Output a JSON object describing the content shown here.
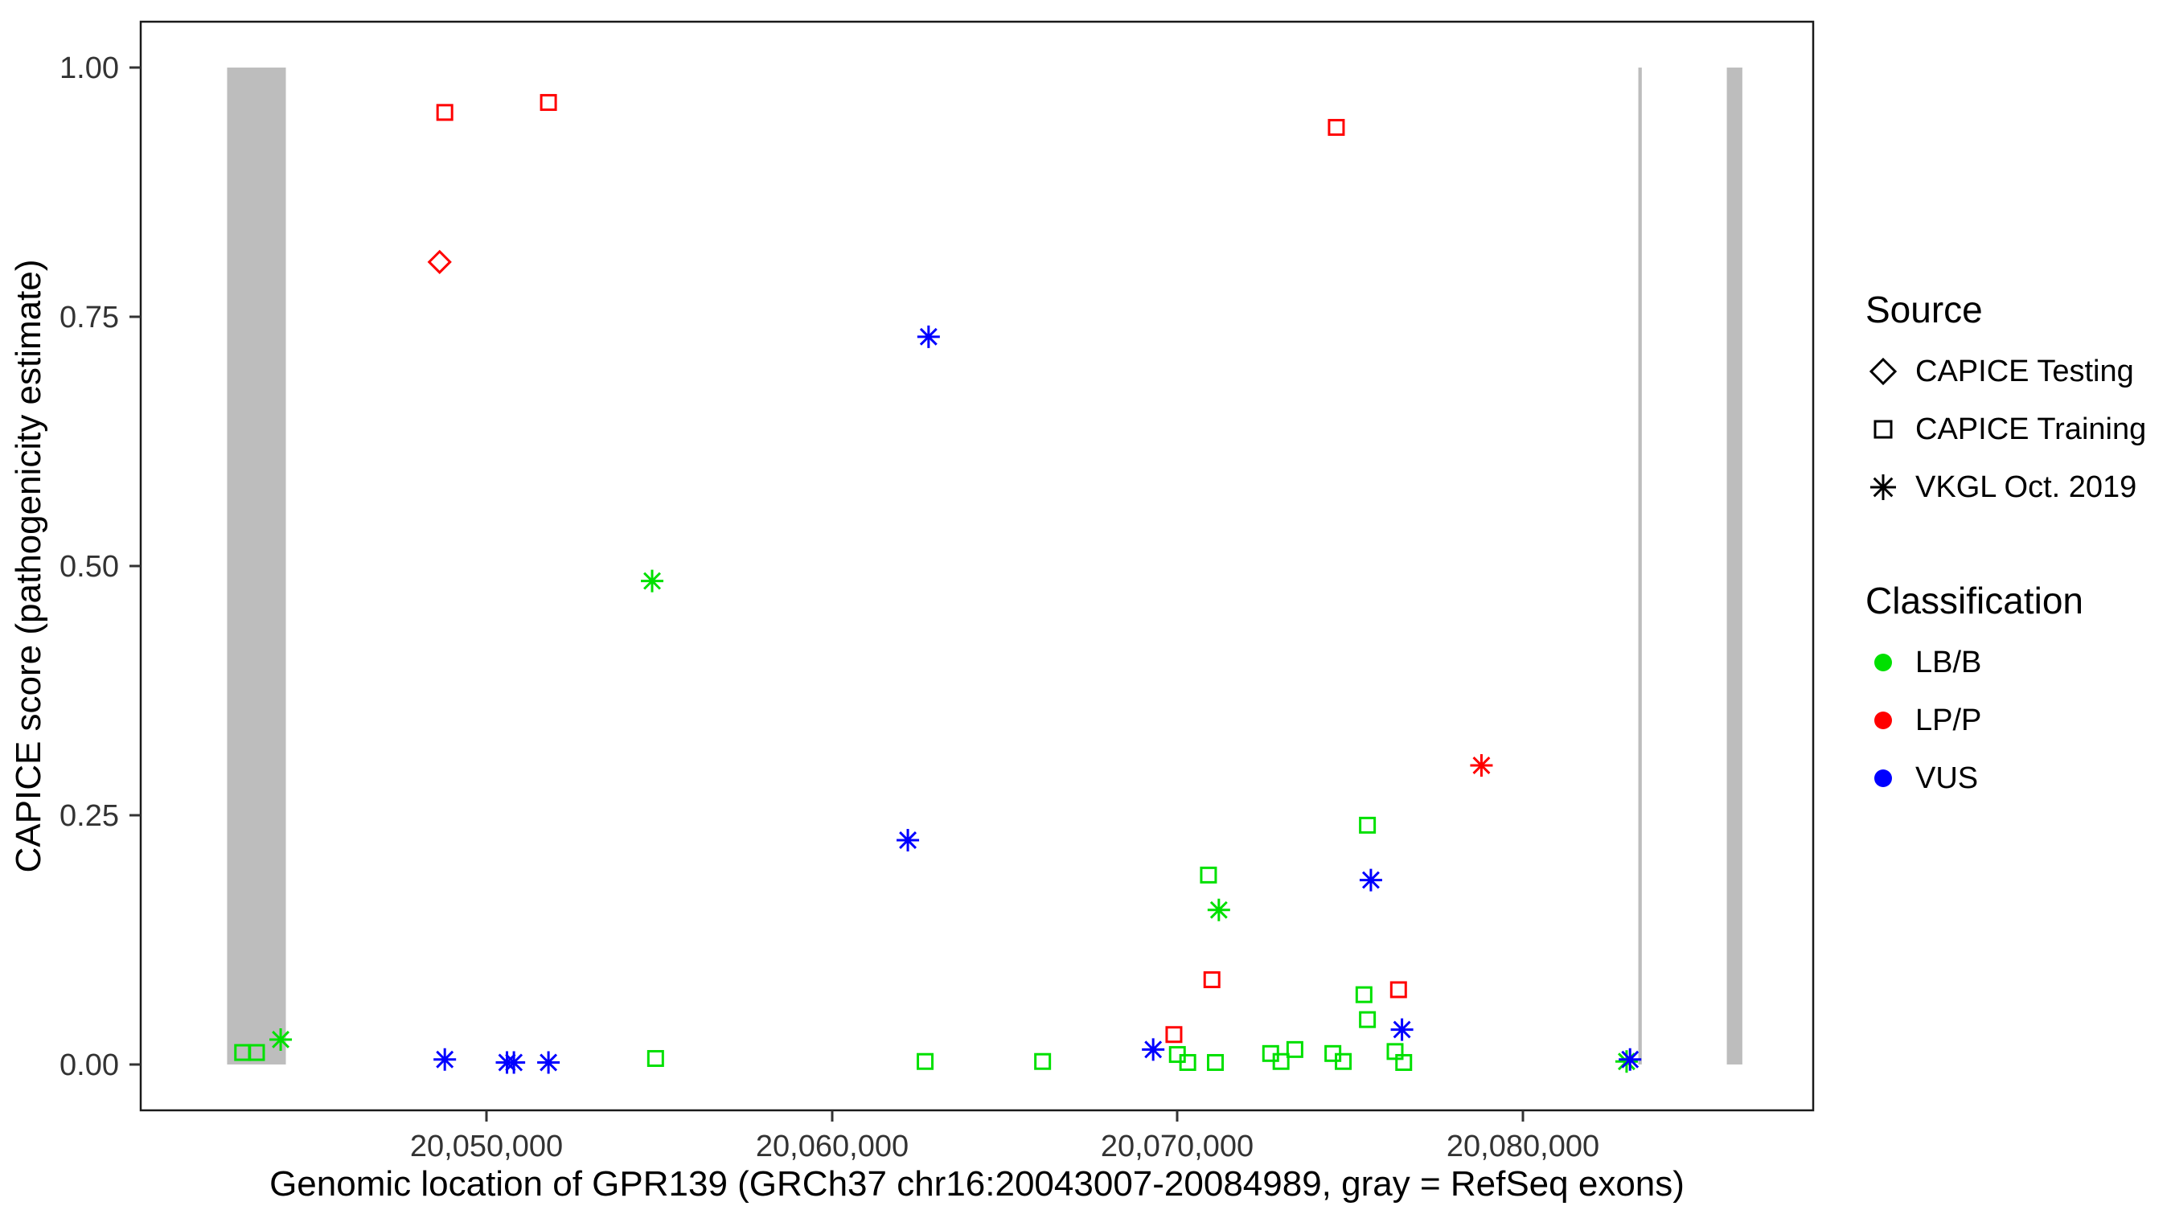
{
  "axes": {
    "x_label": "Genomic location of GPR139 (GRCh37 chr16:20043007-20084989, gray = RefSeq exons)",
    "y_label": "CAPICE score (pathogenicity estimate)",
    "x_ticks": [
      "20,050,000",
      "20,060,000",
      "20,070,000",
      "20,080,000"
    ],
    "y_ticks": [
      "0.00",
      "0.25",
      "0.50",
      "0.75",
      "1.00"
    ]
  },
  "legend": {
    "source": {
      "title": "Source",
      "items": [
        {
          "label": "CAPICE Testing",
          "shape": "diamond"
        },
        {
          "label": "CAPICE Training",
          "shape": "square"
        },
        {
          "label": "VKGL Oct. 2019",
          "shape": "asterisk"
        }
      ]
    },
    "classification": {
      "title": "Classification",
      "items": [
        {
          "label": "LB/B",
          "color_key": "LB/B"
        },
        {
          "label": "LP/P",
          "color_key": "LP/P"
        },
        {
          "label": "VUS",
          "color_key": "VUS"
        }
      ]
    }
  },
  "colors": {
    "LB/B": "#00E000",
    "LP/P": "#FF0000",
    "VUS": "#0000FF",
    "exon": "#BDBDBD",
    "symbol": "#000000"
  },
  "shape_map": {
    "CAPICE Testing": "diamond",
    "CAPICE Training": "square",
    "VKGL Oct. 2019": "asterisk"
  },
  "chart_data": {
    "type": "scatter",
    "title": "",
    "xlabel": "Genomic location of GPR139 (GRCh37 chr16:20043007-20084989, gray = RefSeq exons)",
    "ylabel": "CAPICE score (pathogenicity estimate)",
    "x_domain": [
      20040000,
      20088400
    ],
    "y_domain": [
      -0.046,
      1.046
    ],
    "x_tick_values": [
      20050000,
      20060000,
      20070000,
      20080000
    ],
    "y_tick_values": [
      0,
      0.25,
      0.5,
      0.75,
      1
    ],
    "grid": false,
    "legend_position": "right",
    "exons": [
      [
        20042500,
        20044200
      ],
      [
        20083340,
        20083440
      ],
      [
        20085900,
        20086350
      ]
    ],
    "points": [
      {
        "x": 20048800,
        "y": 0.955,
        "source": "CAPICE Training",
        "classification": "LP/P"
      },
      {
        "x": 20051800,
        "y": 0.965,
        "source": "CAPICE Training",
        "classification": "LP/P"
      },
      {
        "x": 20074600,
        "y": 0.94,
        "source": "CAPICE Training",
        "classification": "LP/P"
      },
      {
        "x": 20048650,
        "y": 0.805,
        "source": "CAPICE Testing",
        "classification": "LP/P"
      },
      {
        "x": 20062800,
        "y": 0.73,
        "source": "VKGL Oct. 2019",
        "classification": "VUS"
      },
      {
        "x": 20054800,
        "y": 0.485,
        "source": "VKGL Oct. 2019",
        "classification": "LB/B"
      },
      {
        "x": 20078800,
        "y": 0.3,
        "source": "VKGL Oct. 2019",
        "classification": "LP/P"
      },
      {
        "x": 20075500,
        "y": 0.24,
        "source": "CAPICE Training",
        "classification": "LB/B"
      },
      {
        "x": 20062200,
        "y": 0.225,
        "source": "VKGL Oct. 2019",
        "classification": "VUS"
      },
      {
        "x": 20070900,
        "y": 0.19,
        "source": "CAPICE Training",
        "classification": "LB/B"
      },
      {
        "x": 20075600,
        "y": 0.185,
        "source": "VKGL Oct. 2019",
        "classification": "VUS"
      },
      {
        "x": 20071200,
        "y": 0.155,
        "source": "VKGL Oct. 2019",
        "classification": "LB/B"
      },
      {
        "x": 20071000,
        "y": 0.085,
        "source": "CAPICE Training",
        "classification": "LP/P"
      },
      {
        "x": 20076400,
        "y": 0.075,
        "source": "CAPICE Training",
        "classification": "LP/P"
      },
      {
        "x": 20075400,
        "y": 0.07,
        "source": "CAPICE Training",
        "classification": "LB/B"
      },
      {
        "x": 20075500,
        "y": 0.045,
        "source": "CAPICE Training",
        "classification": "LB/B"
      },
      {
        "x": 20076500,
        "y": 0.035,
        "source": "VKGL Oct. 2019",
        "classification": "VUS"
      },
      {
        "x": 20069900,
        "y": 0.03,
        "source": "CAPICE Training",
        "classification": "LP/P"
      },
      {
        "x": 20044050,
        "y": 0.025,
        "source": "VKGL Oct. 2019",
        "classification": "LB/B"
      },
      {
        "x": 20069300,
        "y": 0.015,
        "source": "VKGL Oct. 2019",
        "classification": "VUS"
      },
      {
        "x": 20042950,
        "y": 0.012,
        "source": "CAPICE Training",
        "classification": "LB/B"
      },
      {
        "x": 20043350,
        "y": 0.012,
        "source": "CAPICE Training",
        "classification": "LB/B"
      },
      {
        "x": 20048800,
        "y": 0.005,
        "source": "VKGL Oct. 2019",
        "classification": "VUS"
      },
      {
        "x": 20050600,
        "y": 0.002,
        "source": "VKGL Oct. 2019",
        "classification": "VUS"
      },
      {
        "x": 20050800,
        "y": 0.002,
        "source": "VKGL Oct. 2019",
        "classification": "VUS"
      },
      {
        "x": 20051800,
        "y": 0.002,
        "source": "VKGL Oct. 2019",
        "classification": "VUS"
      },
      {
        "x": 20054900,
        "y": 0.006,
        "source": "CAPICE Training",
        "classification": "LB/B"
      },
      {
        "x": 20062700,
        "y": 0.003,
        "source": "CAPICE Training",
        "classification": "LB/B"
      },
      {
        "x": 20066100,
        "y": 0.003,
        "source": "CAPICE Training",
        "classification": "LB/B"
      },
      {
        "x": 20070000,
        "y": 0.01,
        "source": "CAPICE Training",
        "classification": "LB/B"
      },
      {
        "x": 20070300,
        "y": 0.002,
        "source": "CAPICE Training",
        "classification": "LB/B"
      },
      {
        "x": 20071100,
        "y": 0.002,
        "source": "CAPICE Training",
        "classification": "LB/B"
      },
      {
        "x": 20072700,
        "y": 0.011,
        "source": "CAPICE Training",
        "classification": "LB/B"
      },
      {
        "x": 20073000,
        "y": 0.003,
        "source": "CAPICE Training",
        "classification": "LB/B"
      },
      {
        "x": 20073400,
        "y": 0.015,
        "source": "CAPICE Training",
        "classification": "LB/B"
      },
      {
        "x": 20074500,
        "y": 0.011,
        "source": "CAPICE Training",
        "classification": "LB/B"
      },
      {
        "x": 20074800,
        "y": 0.003,
        "source": "CAPICE Training",
        "classification": "LB/B"
      },
      {
        "x": 20076300,
        "y": 0.013,
        "source": "CAPICE Training",
        "classification": "LB/B"
      },
      {
        "x": 20076550,
        "y": 0.002,
        "source": "CAPICE Training",
        "classification": "LB/B"
      },
      {
        "x": 20083000,
        "y": 0.003,
        "source": "VKGL Oct. 2019",
        "classification": "LB/B"
      },
      {
        "x": 20083100,
        "y": 0.005,
        "source": "VKGL Oct. 2019",
        "classification": "VUS"
      }
    ]
  }
}
